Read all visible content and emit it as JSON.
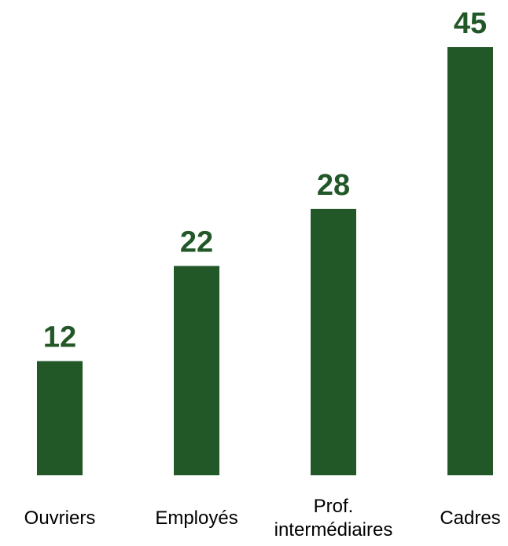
{
  "colors": {
    "bar": "#225728",
    "value_label": "#225728",
    "category_label": "#000000",
    "background": "#ffffff"
  },
  "chart_data": {
    "type": "bar",
    "categories": [
      "Ouvriers",
      "Employés",
      "Prof.\nintermédiaires",
      "Cadres"
    ],
    "values": [
      12,
      22,
      28,
      45
    ],
    "data_labels": [
      "12",
      "22",
      "28",
      "45"
    ],
    "title": "",
    "xlabel": "",
    "ylabel": "",
    "ylim": [
      0,
      45
    ],
    "grid": false,
    "legend": "none"
  }
}
